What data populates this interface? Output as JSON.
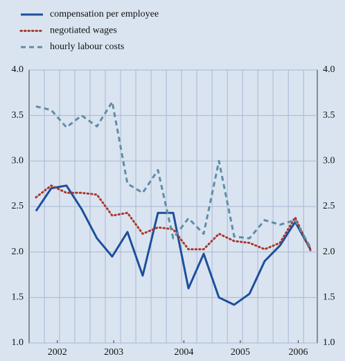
{
  "chart_data": {
    "type": "line",
    "categories": [
      null,
      null,
      null,
      null,
      null,
      null,
      null,
      null,
      null,
      null,
      null,
      null,
      null,
      null,
      null,
      null,
      null,
      null,
      null
    ],
    "series": [
      {
        "name": "compensation per employee",
        "color": "#1c4f9c",
        "style": "solid",
        "values": [
          2.45,
          2.7,
          2.73,
          2.47,
          2.15,
          1.95,
          2.22,
          1.74,
          2.43,
          2.43,
          1.6,
          1.98,
          1.5,
          1.42,
          1.54,
          1.9,
          2.07,
          2.33,
          2.03
        ]
      },
      {
        "name": "negotiated wages",
        "color": "#a8382c",
        "style": "dotted",
        "values": [
          2.6,
          2.73,
          2.65,
          2.65,
          2.63,
          2.4,
          2.43,
          2.2,
          2.27,
          2.25,
          2.03,
          2.03,
          2.2,
          2.12,
          2.1,
          2.03,
          2.1,
          2.38,
          2.02
        ]
      },
      {
        "name": "hourly labour costs",
        "color": "#5d8ea6",
        "style": "dashed",
        "values": [
          3.6,
          3.56,
          3.37,
          3.5,
          3.38,
          3.65,
          2.75,
          2.65,
          2.9,
          2.15,
          2.37,
          2.2,
          3.0,
          2.17,
          2.15,
          2.35,
          2.3,
          2.35,
          2.05
        ]
      }
    ],
    "xlim": [
      -0.45,
      18.45
    ],
    "xticks": [
      {
        "value": 1.4,
        "label": "2002"
      },
      {
        "value": 5.1,
        "label": "2003"
      },
      {
        "value": 9.7,
        "label": "2004"
      },
      {
        "value": 13.4,
        "label": "2005"
      },
      {
        "value": 17.2,
        "label": "2006"
      }
    ],
    "ylim": [
      1,
      4
    ],
    "yticks": [
      {
        "value": 1,
        "label": "1.0"
      },
      1.5,
      {
        "value": 2,
        "label": "2.0"
      },
      2.5,
      {
        "value": 3,
        "label": "3.0"
      },
      3.5,
      {
        "value": 4,
        "label": "4.0"
      }
    ],
    "grid": true,
    "legend": "top-left"
  }
}
